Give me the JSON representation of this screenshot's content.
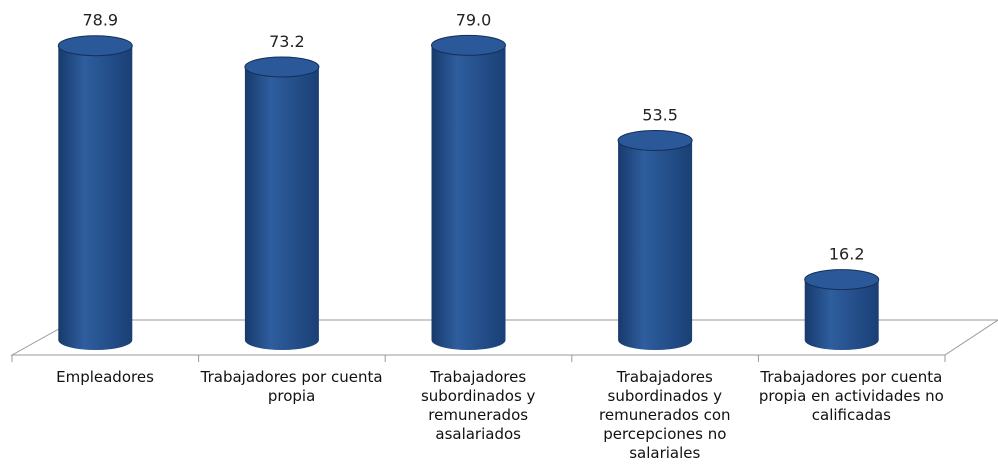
{
  "chart_data": {
    "type": "bar",
    "categories": [
      "Empleadores",
      "Trabajadores por cuenta propia",
      "Trabajadores subordinados y remunerados asalariados",
      "Trabajadores subordinados y remunerados con percepciones no salariales",
      "Trabajadores por cuenta propia en actividades no calificadas"
    ],
    "values": [
      78.9,
      73.2,
      79.0,
      53.5,
      16.2
    ],
    "value_labels": [
      "78.9",
      "73.2",
      "79.0",
      "53.5",
      "16.2"
    ],
    "color": "#24508f"
  }
}
